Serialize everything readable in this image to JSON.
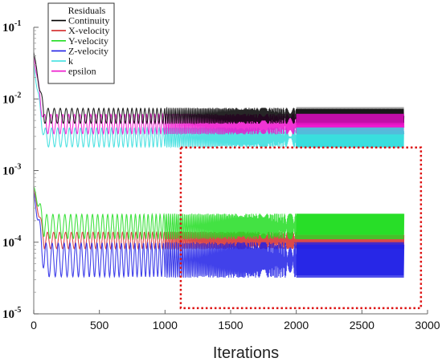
{
  "chart_data": {
    "type": "line",
    "title": "",
    "xlabel": "Iterations",
    "ylabel": "",
    "y_scale": "log",
    "xlim": [
      0,
      3000
    ],
    "ylim": [
      1e-05,
      0.1
    ],
    "x_ticks": [
      "0",
      "500",
      "1000",
      "1500",
      "2000",
      "2500",
      "3000"
    ],
    "y_ticks": [
      {
        "base": "10",
        "exp": "-1",
        "value": 0.1
      },
      {
        "base": "10",
        "exp": "-2",
        "value": 0.01
      },
      {
        "base": "10",
        "exp": "-3",
        "value": 0.001
      },
      {
        "base": "10",
        "exp": "-4",
        "value": 0.0001
      },
      {
        "base": "10",
        "exp": "-5",
        "value": 1e-05
      }
    ],
    "grid": false,
    "legend_position": "top-left",
    "legend_title": "Residuals",
    "x_range": [
      0,
      2820
    ],
    "series": [
      {
        "name": "Continuity",
        "color": "#000000",
        "start": 0.045,
        "low": 0.0045,
        "high": 0.0075
      },
      {
        "name": "X-velocity",
        "color": "#d42a2a",
        "start": 0.00055,
        "low": 8e-05,
        "high": 0.00014
      },
      {
        "name": "Y-velocity",
        "color": "#22dd22",
        "start": 0.0006,
        "low": 0.00011,
        "high": 0.00025
      },
      {
        "name": "Z-velocity",
        "color": "#2020e6",
        "start": 0.0005,
        "low": 3.2e-05,
        "high": 0.0001
      },
      {
        "name": "k",
        "color": "#33dddd",
        "start": 0.03,
        "low": 0.0021,
        "high": 0.004
      },
      {
        "name": "epsilon",
        "color": "#ee11cc",
        "start": 0.04,
        "low": 0.0032,
        "high": 0.0062
      }
    ],
    "annotation": {
      "type": "dotted-box",
      "color": "#dd1111",
      "x_range": [
        1120,
        2950
      ],
      "y_range": [
        1.2e-05,
        0.0021
      ]
    }
  }
}
